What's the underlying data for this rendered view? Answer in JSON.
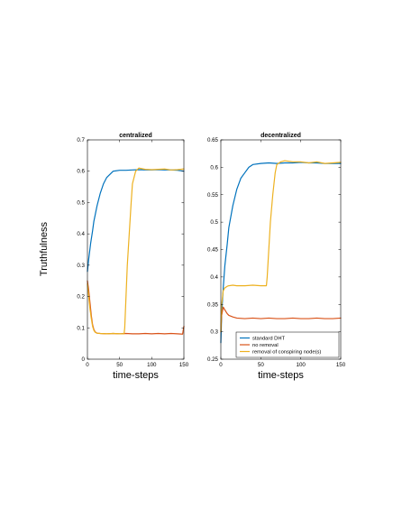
{
  "figure": {
    "ylabel": "Truthfulness",
    "legend_position": "bottom-right of decentralized panel"
  },
  "chart_data": [
    {
      "type": "line",
      "title": "centralized",
      "xlabel": "time-steps",
      "ylabel": "Truthfulness",
      "xlim": [
        0,
        150
      ],
      "ylim": [
        0,
        0.7
      ],
      "xticks": [
        0,
        50,
        100,
        150
      ],
      "xtick_labels": [
        "0",
        "50",
        "100",
        "150"
      ],
      "yticks": [
        0,
        0.1,
        0.2,
        0.3,
        0.4,
        0.5,
        0.6,
        0.7
      ],
      "ytick_labels": [
        "0",
        "0.1",
        "0.2",
        "0.3",
        "0.4",
        "0.5",
        "0.6",
        "0.7"
      ],
      "grid": false,
      "series": [
        {
          "name": "standard DHT",
          "color": "#0072BD",
          "x": [
            0,
            2,
            5,
            8,
            10,
            15,
            20,
            25,
            30,
            35,
            40,
            50,
            60,
            70,
            80,
            90,
            100,
            110,
            120,
            130,
            140,
            150
          ],
          "y": [
            0.28,
            0.32,
            0.37,
            0.41,
            0.44,
            0.49,
            0.53,
            0.56,
            0.58,
            0.59,
            0.6,
            0.603,
            0.603,
            0.604,
            0.605,
            0.604,
            0.604,
            0.605,
            0.604,
            0.604,
            0.603,
            0.6
          ]
        },
        {
          "name": "no removal",
          "color": "#D95319",
          "x": [
            0,
            2,
            4,
            6,
            8,
            10,
            12,
            15,
            20,
            30,
            40,
            50,
            60,
            70,
            80,
            90,
            100,
            110,
            120,
            130,
            140,
            148,
            150
          ],
          "y": [
            0.25,
            0.22,
            0.18,
            0.14,
            0.11,
            0.095,
            0.087,
            0.083,
            0.082,
            0.081,
            0.082,
            0.081,
            0.082,
            0.081,
            0.081,
            0.082,
            0.081,
            0.082,
            0.081,
            0.082,
            0.081,
            0.08,
            0.105
          ]
        },
        {
          "name": "removal of conspiring node(s)",
          "color": "#EDB120",
          "x": [
            0,
            2,
            4,
            6,
            8,
            10,
            12,
            15,
            20,
            30,
            40,
            50,
            57,
            58,
            60,
            62,
            65,
            68,
            70,
            75,
            80,
            90,
            100,
            110,
            120,
            130,
            140,
            150
          ],
          "y": [
            0.24,
            0.2,
            0.16,
            0.13,
            0.105,
            0.092,
            0.086,
            0.083,
            0.082,
            0.081,
            0.082,
            0.081,
            0.081,
            0.1,
            0.2,
            0.3,
            0.4,
            0.5,
            0.56,
            0.6,
            0.61,
            0.606,
            0.605,
            0.606,
            0.607,
            0.604,
            0.605,
            0.607
          ]
        }
      ]
    },
    {
      "type": "line",
      "title": "decentralized",
      "xlabel": "time-steps",
      "ylabel": "",
      "xlim": [
        0,
        150
      ],
      "ylim": [
        0.25,
        0.65
      ],
      "xticks": [
        0,
        50,
        100,
        150
      ],
      "xtick_labels": [
        "0",
        "50",
        "100",
        "150"
      ],
      "yticks": [
        0.25,
        0.3,
        0.35,
        0.4,
        0.45,
        0.5,
        0.55,
        0.6,
        0.65
      ],
      "ytick_labels": [
        "0.25",
        "0.3",
        "0.35",
        "0.4",
        "0.45",
        "0.5",
        "0.55",
        "0.6",
        "0.65"
      ],
      "grid": false,
      "legend": {
        "position": "bottom-right",
        "entries": [
          "standard DHT",
          "no removal",
          "removal of conspiring node(s)"
        ]
      },
      "series": [
        {
          "name": "standard DHT",
          "color": "#0072BD",
          "x": [
            0,
            1,
            3,
            5,
            8,
            10,
            15,
            20,
            25,
            30,
            35,
            40,
            50,
            60,
            70,
            80,
            90,
            100,
            110,
            120,
            130,
            140,
            150
          ],
          "y": [
            0.28,
            0.33,
            0.38,
            0.42,
            0.46,
            0.49,
            0.53,
            0.56,
            0.58,
            0.59,
            0.6,
            0.605,
            0.607,
            0.608,
            0.607,
            0.608,
            0.608,
            0.609,
            0.608,
            0.608,
            0.607,
            0.607,
            0.607
          ]
        },
        {
          "name": "no removal",
          "color": "#D95319",
          "x": [
            0,
            1,
            3,
            5,
            8,
            10,
            15,
            20,
            30,
            40,
            50,
            60,
            70,
            80,
            90,
            100,
            110,
            120,
            130,
            140,
            150
          ],
          "y": [
            0.3,
            0.33,
            0.345,
            0.34,
            0.333,
            0.33,
            0.327,
            0.325,
            0.324,
            0.325,
            0.324,
            0.325,
            0.324,
            0.324,
            0.325,
            0.324,
            0.324,
            0.325,
            0.324,
            0.324,
            0.325
          ]
        },
        {
          "name": "removal of conspiring node(s)",
          "color": "#EDB120",
          "x": [
            0,
            1,
            3,
            5,
            8,
            10,
            15,
            20,
            30,
            40,
            50,
            57,
            58,
            60,
            62,
            65,
            68,
            70,
            75,
            80,
            90,
            100,
            110,
            120,
            130,
            140,
            150
          ],
          "y": [
            0.3,
            0.35,
            0.375,
            0.38,
            0.383,
            0.384,
            0.385,
            0.384,
            0.384,
            0.385,
            0.384,
            0.384,
            0.4,
            0.45,
            0.5,
            0.55,
            0.59,
            0.605,
            0.61,
            0.612,
            0.61,
            0.61,
            0.608,
            0.61,
            0.607,
            0.608,
            0.609
          ]
        }
      ]
    }
  ]
}
